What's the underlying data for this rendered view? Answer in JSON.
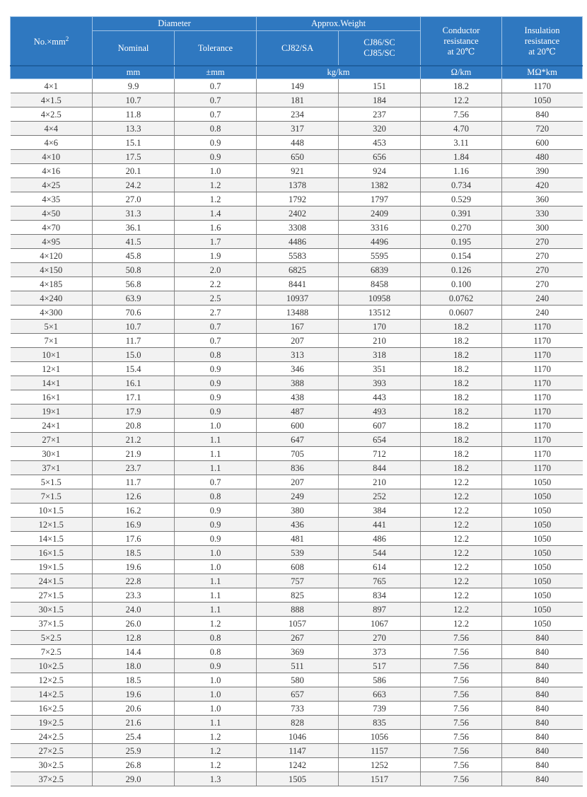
{
  "header": {
    "no_mm2": "No.×mm",
    "no_mm2_sup": "2",
    "diameter": "Diameter",
    "nominal": "Nominal",
    "tolerance": "Tolerance",
    "approx_weight": "Approx.Weight",
    "cj82": "CJ82/SA",
    "cj86": "CJ86/SC",
    "cj85": "CJ85/SC",
    "conductor": [
      "Conductor",
      "resistance",
      "at 20℃"
    ],
    "insulation": [
      "Insulation",
      "resistance",
      "at 20℃"
    ],
    "unit_mm": "mm",
    "unit_tol": "±mm",
    "unit_weight": "kg/km",
    "unit_ohm": "Ω/km",
    "unit_mohm": "MΩ*km"
  },
  "header_color": "#2f78c0",
  "rows": [
    [
      "4×1",
      "9.9",
      "0.7",
      "149",
      "151",
      "18.2",
      "1170"
    ],
    [
      "4×1.5",
      "10.7",
      "0.7",
      "181",
      "184",
      "12.2",
      "1050"
    ],
    [
      "4×2.5",
      "11.8",
      "0.7",
      "234",
      "237",
      "7.56",
      "840"
    ],
    [
      "4×4",
      "13.3",
      "0.8",
      "317",
      "320",
      "4.70",
      "720"
    ],
    [
      "4×6",
      "15.1",
      "0.9",
      "448",
      "453",
      "3.11",
      "600"
    ],
    [
      "4×10",
      "17.5",
      "0.9",
      "650",
      "656",
      "1.84",
      "480"
    ],
    [
      "4×16",
      "20.1",
      "1.0",
      "921",
      "924",
      "1.16",
      "390"
    ],
    [
      "4×25",
      "24.2",
      "1.2",
      "1378",
      "1382",
      "0.734",
      "420"
    ],
    [
      "4×35",
      "27.0",
      "1.2",
      "1792",
      "1797",
      "0.529",
      "360"
    ],
    [
      "4×50",
      "31.3",
      "1.4",
      "2402",
      "2409",
      "0.391",
      "330"
    ],
    [
      "4×70",
      "36.1",
      "1.6",
      "3308",
      "3316",
      "0.270",
      "300"
    ],
    [
      "4×95",
      "41.5",
      "1.7",
      "4486",
      "4496",
      "0.195",
      "270"
    ],
    [
      "4×120",
      "45.8",
      "1.9",
      "5583",
      "5595",
      "0.154",
      "270"
    ],
    [
      "4×150",
      "50.8",
      "2.0",
      "6825",
      "6839",
      "0.126",
      "270"
    ],
    [
      "4×185",
      "56.8",
      "2.2",
      "8441",
      "8458",
      "0.100",
      "270"
    ],
    [
      "4×240",
      "63.9",
      "2.5",
      "10937",
      "10958",
      "0.0762",
      "240"
    ],
    [
      "4×300",
      "70.6",
      "2.7",
      "13488",
      "13512",
      "0.0607",
      "240"
    ],
    [
      "5×1",
      "10.7",
      "0.7",
      "167",
      "170",
      "18.2",
      "1170"
    ],
    [
      "7×1",
      "11.7",
      "0.7",
      "207",
      "210",
      "18.2",
      "1170"
    ],
    [
      "10×1",
      "15.0",
      "0.8",
      "313",
      "318",
      "18.2",
      "1170"
    ],
    [
      "12×1",
      "15.4",
      "0.9",
      "346",
      "351",
      "18.2",
      "1170"
    ],
    [
      "14×1",
      "16.1",
      "0.9",
      "388",
      "393",
      "18.2",
      "1170"
    ],
    [
      "16×1",
      "17.1",
      "0.9",
      "438",
      "443",
      "18.2",
      "1170"
    ],
    [
      "19×1",
      "17.9",
      "0.9",
      "487",
      "493",
      "18.2",
      "1170"
    ],
    [
      "24×1",
      "20.8",
      "1.0",
      "600",
      "607",
      "18.2",
      "1170"
    ],
    [
      "27×1",
      "21.2",
      "1.1",
      "647",
      "654",
      "18.2",
      "1170"
    ],
    [
      "30×1",
      "21.9",
      "1.1",
      "705",
      "712",
      "18.2",
      "1170"
    ],
    [
      "37×1",
      "23.7",
      "1.1",
      "836",
      "844",
      "18.2",
      "1170"
    ],
    [
      "5×1.5",
      "11.7",
      "0.7",
      "207",
      "210",
      "12.2",
      "1050"
    ],
    [
      "7×1.5",
      "12.6",
      "0.8",
      "249",
      "252",
      "12.2",
      "1050"
    ],
    [
      "10×1.5",
      "16.2",
      "0.9",
      "380",
      "384",
      "12.2",
      "1050"
    ],
    [
      "12×1.5",
      "16.9",
      "0.9",
      "436",
      "441",
      "12.2",
      "1050"
    ],
    [
      "14×1.5",
      "17.6",
      "0.9",
      "481",
      "486",
      "12.2",
      "1050"
    ],
    [
      "16×1.5",
      "18.5",
      "1.0",
      "539",
      "544",
      "12.2",
      "1050"
    ],
    [
      "19×1.5",
      "19.6",
      "1.0",
      "608",
      "614",
      "12.2",
      "1050"
    ],
    [
      "24×1.5",
      "22.8",
      "1.1",
      "757",
      "765",
      "12.2",
      "1050"
    ],
    [
      "27×1.5",
      "23.3",
      "1.1",
      "825",
      "834",
      "12.2",
      "1050"
    ],
    [
      "30×1.5",
      "24.0",
      "1.1",
      "888",
      "897",
      "12.2",
      "1050"
    ],
    [
      "37×1.5",
      "26.0",
      "1.2",
      "1057",
      "1067",
      "12.2",
      "1050"
    ],
    [
      "5×2.5",
      "12.8",
      "0.8",
      "267",
      "270",
      "7.56",
      "840"
    ],
    [
      "7×2.5",
      "14.4",
      "0.8",
      "369",
      "373",
      "7.56",
      "840"
    ],
    [
      "10×2.5",
      "18.0",
      "0.9",
      "511",
      "517",
      "7.56",
      "840"
    ],
    [
      "12×2.5",
      "18.5",
      "1.0",
      "580",
      "586",
      "7.56",
      "840"
    ],
    [
      "14×2.5",
      "19.6",
      "1.0",
      "657",
      "663",
      "7.56",
      "840"
    ],
    [
      "16×2.5",
      "20.6",
      "1.0",
      "733",
      "739",
      "7.56",
      "840"
    ],
    [
      "19×2.5",
      "21.6",
      "1.1",
      "828",
      "835",
      "7.56",
      "840"
    ],
    [
      "24×2.5",
      "25.4",
      "1.2",
      "1046",
      "1056",
      "7.56",
      "840"
    ],
    [
      "27×2.5",
      "25.9",
      "1.2",
      "1147",
      "1157",
      "7.56",
      "840"
    ],
    [
      "30×2.5",
      "26.8",
      "1.2",
      "1242",
      "1252",
      "7.56",
      "840"
    ],
    [
      "37×2.5",
      "29.0",
      "1.3",
      "1505",
      "1517",
      "7.56",
      "840"
    ]
  ]
}
